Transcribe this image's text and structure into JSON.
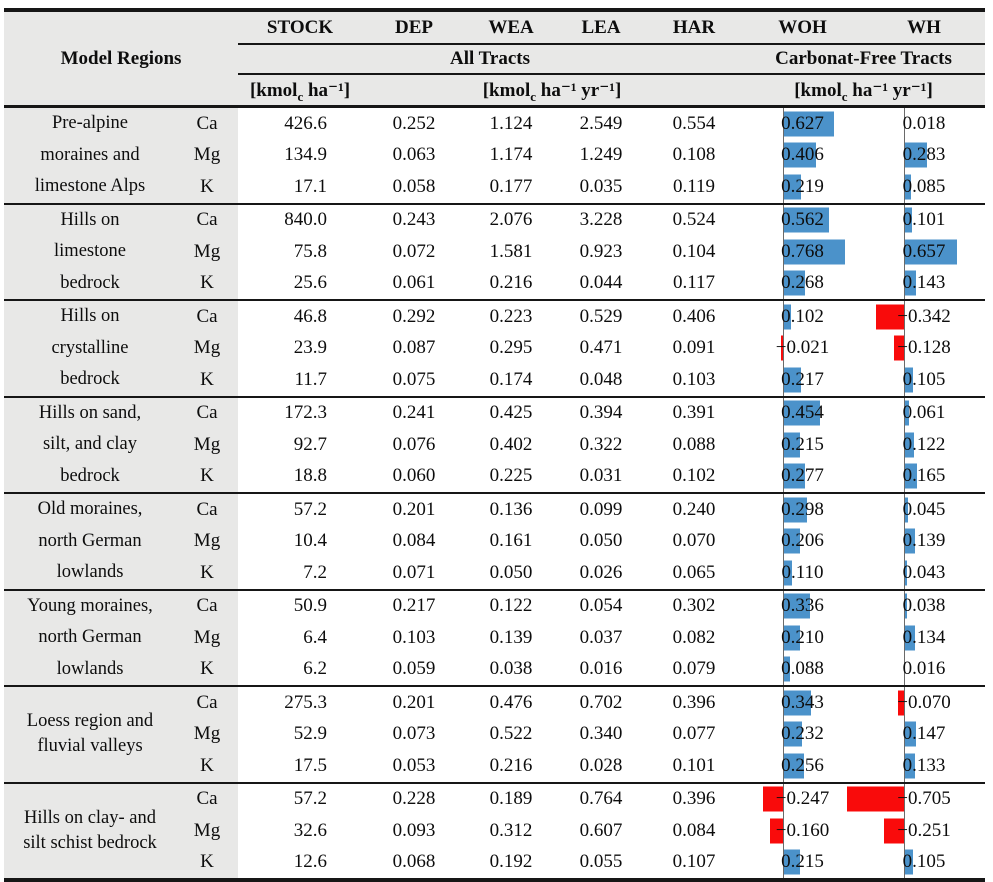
{
  "table": {
    "header": {
      "model_regions_label": "Model Regions",
      "columns": [
        "STOCK",
        "DEP",
        "WEA",
        "LEA",
        "HAR",
        "WOH",
        "WH"
      ],
      "group_all_tracts": "All Tracts",
      "group_carbonate_free": "Carbonat-Free Tracts",
      "units": {
        "stock": {
          "pre": "[kmol",
          "sub": "c",
          "post": " ha⁻¹]"
        },
        "all_tracts_rates": {
          "pre": "[kmol",
          "sub": "c",
          "post": " ha⁻¹ yr⁻¹]"
        },
        "carbonate_free_rates": {
          "pre": "[kmol",
          "sub": "c",
          "post": " ha⁻¹ yr⁻¹]"
        }
      }
    },
    "regions": [
      {
        "name_lines": [
          "Pre-alpine",
          "moraines and",
          "limestone Alps"
        ],
        "rows": [
          {
            "element": "Ca",
            "values": [
              "426.6",
              "0.252",
              "1.124",
              "2.549",
              "0.554"
            ],
            "woh": {
              "t": "0.627",
              "v": 0.627
            },
            "wh": {
              "t": "0.018",
              "v": 0.018
            }
          },
          {
            "element": "Mg",
            "values": [
              "134.9",
              "0.063",
              "1.174",
              "1.249",
              "0.108"
            ],
            "woh": {
              "t": "0.406",
              "v": 0.406
            },
            "wh": {
              "t": "0.283",
              "v": 0.283
            }
          },
          {
            "element": "K",
            "values": [
              "17.1",
              "0.058",
              "0.177",
              "0.035",
              "0.119"
            ],
            "woh": {
              "t": "0.219",
              "v": 0.219
            },
            "wh": {
              "t": "0.085",
              "v": 0.085
            }
          }
        ]
      },
      {
        "name_lines": [
          "Hills on",
          "limestone",
          "bedrock"
        ],
        "rows": [
          {
            "element": "Ca",
            "values": [
              "840.0",
              "0.243",
              "2.076",
              "3.228",
              "0.524"
            ],
            "woh": {
              "t": "0.562",
              "v": 0.562
            },
            "wh": {
              "t": "0.101",
              "v": 0.101
            }
          },
          {
            "element": "Mg",
            "values": [
              "75.8",
              "0.072",
              "1.581",
              "0.923",
              "0.104"
            ],
            "woh": {
              "t": "0.768",
              "v": 0.768
            },
            "wh": {
              "t": "0.657",
              "v": 0.657
            }
          },
          {
            "element": "K",
            "values": [
              "25.6",
              "0.061",
              "0.216",
              "0.044",
              "0.117"
            ],
            "woh": {
              "t": "0.268",
              "v": 0.268
            },
            "wh": {
              "t": "0.143",
              "v": 0.143
            }
          }
        ]
      },
      {
        "name_lines": [
          "Hills on",
          "crystalline",
          "bedrock"
        ],
        "rows": [
          {
            "element": "Ca",
            "values": [
              "46.8",
              "0.292",
              "0.223",
              "0.529",
              "0.406"
            ],
            "woh": {
              "t": "0.102",
              "v": 0.102
            },
            "wh": {
              "t": "−0.342",
              "v": -0.342
            }
          },
          {
            "element": "Mg",
            "values": [
              "23.9",
              "0.087",
              "0.295",
              "0.471",
              "0.091"
            ],
            "woh": {
              "t": "−0.021",
              "v": -0.021
            },
            "wh": {
              "t": "−0.128",
              "v": -0.128
            }
          },
          {
            "element": "K",
            "values": [
              "11.7",
              "0.075",
              "0.174",
              "0.048",
              "0.103"
            ],
            "woh": {
              "t": "0.217",
              "v": 0.217
            },
            "wh": {
              "t": "0.105",
              "v": 0.105
            }
          }
        ]
      },
      {
        "name_lines": [
          "Hills on sand,",
          "silt, and clay",
          "bedrock"
        ],
        "rows": [
          {
            "element": "Ca",
            "values": [
              "172.3",
              "0.241",
              "0.425",
              "0.394",
              "0.391"
            ],
            "woh": {
              "t": "0.454",
              "v": 0.454
            },
            "wh": {
              "t": "0.061",
              "v": 0.061
            }
          },
          {
            "element": "Mg",
            "values": [
              "92.7",
              "0.076",
              "0.402",
              "0.322",
              "0.088"
            ],
            "woh": {
              "t": "0.215",
              "v": 0.215
            },
            "wh": {
              "t": "0.122",
              "v": 0.122
            }
          },
          {
            "element": "K",
            "values": [
              "18.8",
              "0.060",
              "0.225",
              "0.031",
              "0.102"
            ],
            "woh": {
              "t": "0.277",
              "v": 0.277
            },
            "wh": {
              "t": "0.165",
              "v": 0.165
            }
          }
        ]
      },
      {
        "name_lines": [
          "Old moraines,",
          "north German",
          "lowlands"
        ],
        "rows": [
          {
            "element": "Ca",
            "values": [
              "57.2",
              "0.201",
              "0.136",
              "0.099",
              "0.240"
            ],
            "woh": {
              "t": "0.298",
              "v": 0.298
            },
            "wh": {
              "t": "0.045",
              "v": 0.045
            }
          },
          {
            "element": "Mg",
            "values": [
              "10.4",
              "0.084",
              "0.161",
              "0.050",
              "0.070"
            ],
            "woh": {
              "t": "0.206",
              "v": 0.206
            },
            "wh": {
              "t": "0.139",
              "v": 0.139
            }
          },
          {
            "element": "K",
            "values": [
              "7.2",
              "0.071",
              "0.050",
              "0.026",
              "0.065"
            ],
            "woh": {
              "t": "0.110",
              "v": 0.11
            },
            "wh": {
              "t": "0.043",
              "v": 0.043
            }
          }
        ]
      },
      {
        "name_lines": [
          "Young moraines,",
          "north German",
          "lowlands"
        ],
        "rows": [
          {
            "element": "Ca",
            "values": [
              "50.9",
              "0.217",
              "0.122",
              "0.054",
              "0.302"
            ],
            "woh": {
              "t": "0.336",
              "v": 0.336
            },
            "wh": {
              "t": "0.038",
              "v": 0.038
            }
          },
          {
            "element": "Mg",
            "values": [
              "6.4",
              "0.103",
              "0.139",
              "0.037",
              "0.082"
            ],
            "woh": {
              "t": "0.210",
              "v": 0.21
            },
            "wh": {
              "t": "0.134",
              "v": 0.134
            }
          },
          {
            "element": "K",
            "values": [
              "6.2",
              "0.059",
              "0.038",
              "0.016",
              "0.079"
            ],
            "woh": {
              "t": "0.088",
              "v": 0.088
            },
            "wh": {
              "t": "0.016",
              "v": 0.016
            }
          }
        ]
      },
      {
        "name_lines": [
          "Loess region and",
          "fluvial valleys"
        ],
        "rows": [
          {
            "element": "Ca",
            "values": [
              "275.3",
              "0.201",
              "0.476",
              "0.702",
              "0.396"
            ],
            "woh": {
              "t": "0.343",
              "v": 0.343
            },
            "wh": {
              "t": "−0.070",
              "v": -0.07
            }
          },
          {
            "element": "Mg",
            "values": [
              "52.9",
              "0.073",
              "0.522",
              "0.340",
              "0.077"
            ],
            "woh": {
              "t": "0.232",
              "v": 0.232
            },
            "wh": {
              "t": "0.147",
              "v": 0.147
            }
          },
          {
            "element": "K",
            "values": [
              "17.5",
              "0.053",
              "0.216",
              "0.028",
              "0.101"
            ],
            "woh": {
              "t": "0.256",
              "v": 0.256
            },
            "wh": {
              "t": "0.133",
              "v": 0.133
            }
          }
        ]
      },
      {
        "name_lines": [
          "Hills on clay- and",
          "silt schist bedrock"
        ],
        "rows": [
          {
            "element": "Ca",
            "values": [
              "57.2",
              "0.228",
              "0.189",
              "0.764",
              "0.396"
            ],
            "woh": {
              "t": "−0.247",
              "v": -0.247
            },
            "wh": {
              "t": "−0.705",
              "v": -0.705
            }
          },
          {
            "element": "Mg",
            "values": [
              "32.6",
              "0.093",
              "0.312",
              "0.607",
              "0.084"
            ],
            "woh": {
              "t": "−0.160",
              "v": -0.16
            },
            "wh": {
              "t": "−0.251",
              "v": -0.251
            }
          },
          {
            "element": "K",
            "values": [
              "12.6",
              "0.068",
              "0.192",
              "0.055",
              "0.107"
            ],
            "woh": {
              "t": "0.215",
              "v": 0.215
            },
            "wh": {
              "t": "0.105",
              "v": 0.105
            }
          }
        ]
      }
    ]
  },
  "databars": {
    "positive_color": "#4b92ca",
    "negative_color": "#f90b0b",
    "axis_color": "#6a6a6a"
  }
}
